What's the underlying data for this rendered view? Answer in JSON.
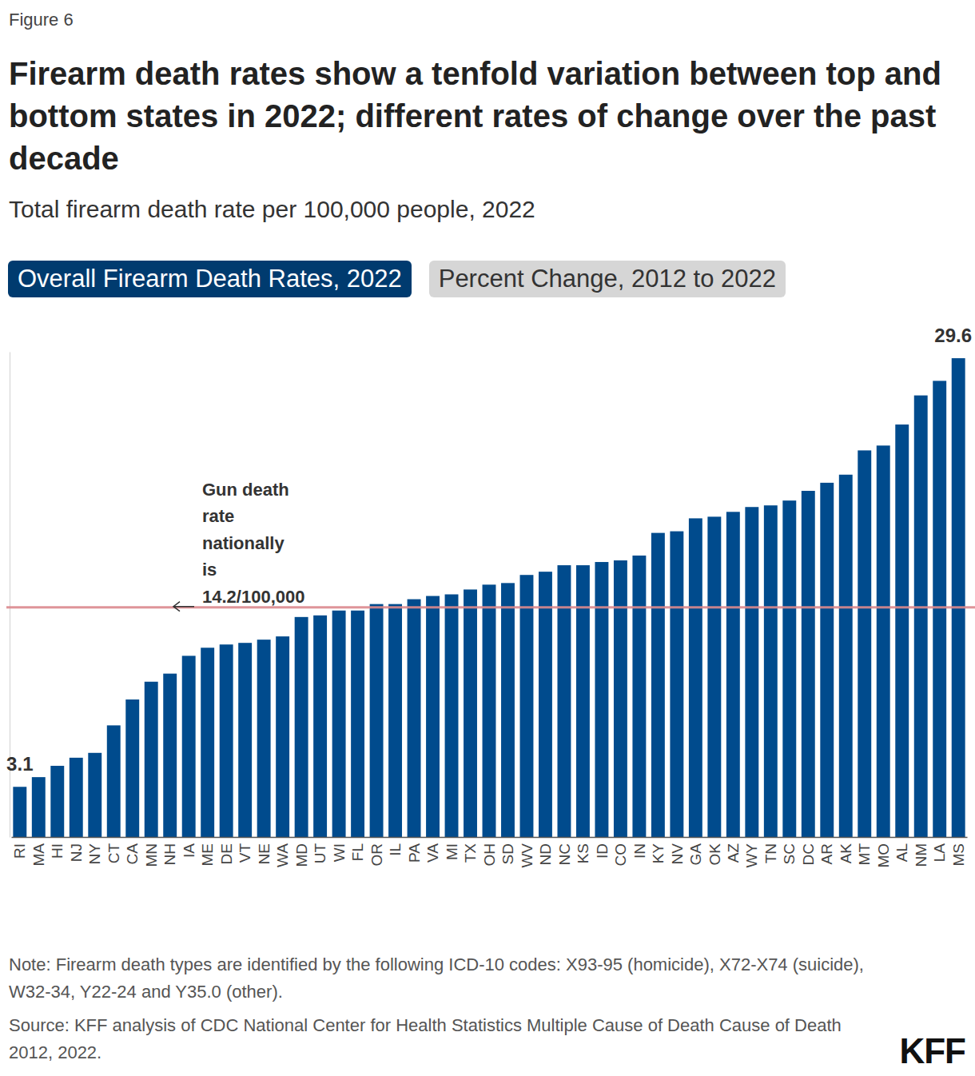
{
  "chart_data": {
    "type": "bar",
    "figure_label": "Figure 6",
    "title": "Firearm death rates show a tenfold variation between top and bottom states in 2022; different rates of change over the past decade",
    "subtitle": "Total firearm death rate per 100,000 people, 2022",
    "tabs": [
      {
        "label": "Overall Firearm Death Rates, 2022",
        "active": true
      },
      {
        "label": "Percent Change, 2012 to 2022",
        "active": false
      }
    ],
    "categories": [
      "RI",
      "MA",
      "HI",
      "NJ",
      "NY",
      "CT",
      "CA",
      "MN",
      "NH",
      "IA",
      "ME",
      "DE",
      "VT",
      "NE",
      "WA",
      "MD",
      "UT",
      "WI",
      "FL",
      "OR",
      "IL",
      "PA",
      "VA",
      "MI",
      "TX",
      "OH",
      "SD",
      "WV",
      "ND",
      "NC",
      "KS",
      "ID",
      "CO",
      "IN",
      "KY",
      "NV",
      "GA",
      "OK",
      "AZ",
      "WY",
      "TN",
      "SC",
      "DC",
      "AR",
      "AK",
      "MT",
      "MO",
      "AL",
      "NM",
      "LA",
      "MS"
    ],
    "values": [
      3.1,
      3.7,
      4.4,
      4.9,
      5.2,
      6.9,
      8.5,
      9.6,
      10.1,
      11.2,
      11.7,
      11.9,
      12.0,
      12.2,
      12.4,
      13.6,
      13.7,
      14.0,
      14.0,
      14.4,
      14.4,
      14.7,
      14.9,
      15.0,
      15.3,
      15.6,
      15.7,
      16.2,
      16.4,
      16.8,
      16.8,
      17.0,
      17.1,
      17.4,
      18.8,
      18.9,
      19.7,
      19.8,
      20.1,
      20.4,
      20.5,
      20.8,
      21.4,
      21.9,
      22.4,
      23.9,
      24.2,
      25.5,
      27.3,
      28.2,
      29.6
    ],
    "data_labels": true,
    "value_labels": [
      "3.1",
      null,
      null,
      null,
      null,
      null,
      null,
      null,
      null,
      null,
      null,
      null,
      null,
      null,
      null,
      null,
      null,
      null,
      null,
      null,
      null,
      null,
      null,
      null,
      null,
      null,
      null,
      null,
      null,
      null,
      null,
      null,
      null,
      null,
      null,
      null,
      null,
      null,
      null,
      null,
      null,
      null,
      null,
      null,
      null,
      null,
      null,
      null,
      null,
      null,
      "29.6"
    ],
    "color": "#004b8d",
    "ylim": [
      0,
      30
    ],
    "grid": false,
    "tick_labels": "x",
    "reference_line": {
      "value": 14.2,
      "color": "#dc8a8e",
      "label_lines": [
        "Gun death",
        "rate",
        "nationally",
        "is",
        "14.2/100,000"
      ]
    },
    "notes": [
      "Note: Firearm death types are identified by the following ICD-10 codes: X93-95 (homicide), X72-X74 (suicide), W32-34, Y22-24 and Y35.0 (other).",
      "Source: KFF analysis of CDC National Center for Health Statistics Multiple Cause of Death Cause of Death 2012, 2022."
    ],
    "logo": "KFF"
  }
}
